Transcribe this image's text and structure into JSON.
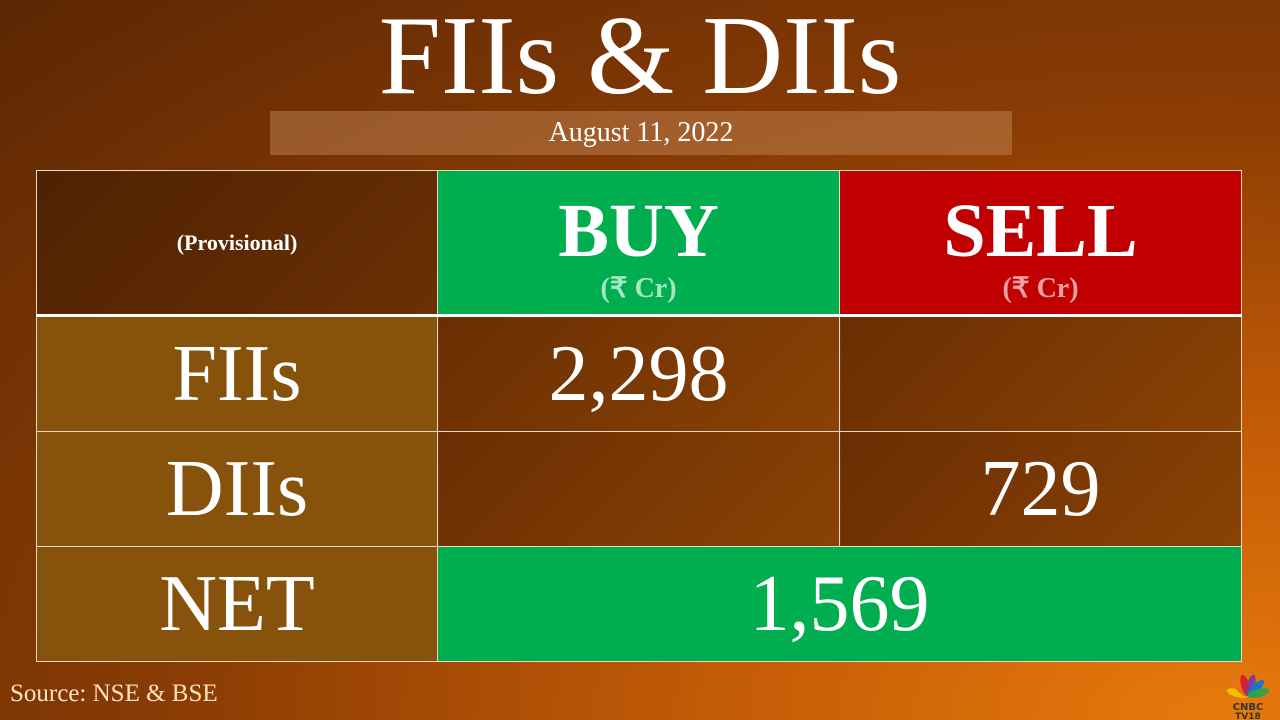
{
  "title": "FIIs & DIIs",
  "date": "August  11, 2022",
  "chart_data": {
    "type": "table",
    "header": {
      "corner": "(Provisional)",
      "buy": "BUY",
      "sell": "SELL",
      "unit": "(₹ Cr)"
    },
    "rows": [
      {
        "label": "FIIs",
        "buy": "2,298",
        "sell": ""
      },
      {
        "label": "DIIs",
        "buy": "",
        "sell": "729"
      }
    ],
    "net": {
      "label": "NET",
      "value": "1,569"
    },
    "colors": {
      "buy": "#00ae50",
      "sell": "#c00000"
    }
  },
  "source": "Source: NSE & BSE",
  "logo": {
    "text": "CNBC TV18",
    "icon": "peacock-logo"
  }
}
